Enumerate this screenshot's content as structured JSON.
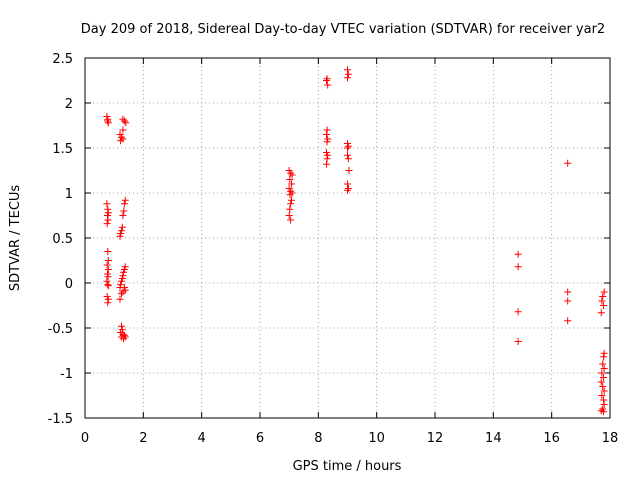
{
  "chart_data": {
    "type": "scatter",
    "title": "Day 209 of 2018, Sidereal Day-to-day VTEC variation (SDTVAR) for receiver yar2",
    "xlabel": "GPS time / hours",
    "ylabel": "SDTVAR / TECUs",
    "xlim": [
      0,
      18
    ],
    "ylim": [
      -1.5,
      2.5
    ],
    "xticks": [
      0,
      2,
      4,
      6,
      8,
      10,
      12,
      14,
      16,
      18
    ],
    "yticks": [
      -1.5,
      -1,
      -0.5,
      0,
      0.5,
      1,
      1.5,
      2,
      2.5
    ],
    "grid": true,
    "marker": "+",
    "series": [
      {
        "name": "yar2",
        "color": "#ff0000",
        "points": [
          [
            0.75,
            1.85
          ],
          [
            0.78,
            1.82
          ],
          [
            0.8,
            1.78
          ],
          [
            0.77,
            1.8
          ],
          [
            0.75,
            0.88
          ],
          [
            0.78,
            0.82
          ],
          [
            0.8,
            0.78
          ],
          [
            0.77,
            0.75
          ],
          [
            0.79,
            0.7
          ],
          [
            0.76,
            0.66
          ],
          [
            0.78,
            0.35
          ],
          [
            0.8,
            0.25
          ],
          [
            0.76,
            0.2
          ],
          [
            0.8,
            0.15
          ],
          [
            0.77,
            0.1
          ],
          [
            0.79,
            0.07
          ],
          [
            0.75,
            0.02
          ],
          [
            0.78,
            -0.02
          ],
          [
            0.8,
            -0.03
          ],
          [
            0.76,
            -0.15
          ],
          [
            0.8,
            -0.18
          ],
          [
            0.78,
            -0.22
          ],
          [
            1.2,
            1.65
          ],
          [
            1.25,
            1.62
          ],
          [
            1.3,
            1.6
          ],
          [
            1.22,
            1.58
          ],
          [
            1.3,
            1.7
          ],
          [
            1.3,
            1.82
          ],
          [
            1.35,
            1.8
          ],
          [
            1.4,
            1.78
          ],
          [
            1.38,
            0.92
          ],
          [
            1.35,
            0.88
          ],
          [
            1.33,
            0.8
          ],
          [
            1.3,
            0.75
          ],
          [
            1.28,
            0.62
          ],
          [
            1.25,
            0.58
          ],
          [
            1.22,
            0.55
          ],
          [
            1.2,
            0.52
          ],
          [
            1.38,
            0.18
          ],
          [
            1.35,
            0.15
          ],
          [
            1.32,
            0.12
          ],
          [
            1.3,
            0.08
          ],
          [
            1.28,
            0.05
          ],
          [
            1.25,
            0.02
          ],
          [
            1.22,
            -0.02
          ],
          [
            1.2,
            -0.05
          ],
          [
            1.35,
            -0.05
          ],
          [
            1.38,
            -0.08
          ],
          [
            1.3,
            -0.1
          ],
          [
            1.25,
            -0.12
          ],
          [
            1.2,
            -0.18
          ],
          [
            1.25,
            -0.48
          ],
          [
            1.28,
            -0.52
          ],
          [
            1.22,
            -0.55
          ],
          [
            1.3,
            -0.57
          ],
          [
            1.35,
            -0.58
          ],
          [
            1.25,
            -0.6
          ],
          [
            1.32,
            -0.62
          ],
          [
            1.38,
            -0.6
          ],
          [
            7.0,
            1.25
          ],
          [
            7.05,
            1.22
          ],
          [
            7.1,
            1.2
          ],
          [
            7.02,
            1.15
          ],
          [
            7.08,
            1.1
          ],
          [
            7.0,
            1.05
          ],
          [
            7.05,
            1.02
          ],
          [
            7.1,
            1.0
          ],
          [
            7.03,
            0.98
          ],
          [
            7.08,
            0.92
          ],
          [
            7.05,
            0.88
          ],
          [
            7.02,
            0.82
          ],
          [
            7.0,
            0.75
          ],
          [
            7.05,
            0.7
          ],
          [
            8.3,
            2.27
          ],
          [
            8.28,
            2.25
          ],
          [
            8.32,
            2.2
          ],
          [
            8.3,
            1.7
          ],
          [
            8.28,
            1.65
          ],
          [
            8.32,
            1.6
          ],
          [
            8.3,
            1.57
          ],
          [
            8.28,
            1.45
          ],
          [
            8.32,
            1.42
          ],
          [
            8.3,
            1.38
          ],
          [
            8.28,
            1.32
          ],
          [
            9.0,
            2.37
          ],
          [
            9.03,
            2.32
          ],
          [
            9.0,
            2.28
          ],
          [
            9.0,
            1.55
          ],
          [
            9.03,
            1.52
          ],
          [
            9.0,
            1.5
          ],
          [
            9.0,
            1.42
          ],
          [
            9.03,
            1.38
          ],
          [
            9.05,
            1.25
          ],
          [
            9.0,
            1.1
          ],
          [
            9.03,
            1.05
          ],
          [
            9.0,
            1.03
          ],
          [
            14.85,
            0.32
          ],
          [
            14.85,
            0.18
          ],
          [
            14.85,
            -0.32
          ],
          [
            14.85,
            -0.65
          ],
          [
            16.55,
            1.33
          ],
          [
            16.55,
            -0.1
          ],
          [
            16.55,
            -0.2
          ],
          [
            16.55,
            -0.42
          ],
          [
            17.8,
            -0.1
          ],
          [
            17.75,
            -0.15
          ],
          [
            17.72,
            -0.2
          ],
          [
            17.78,
            -0.25
          ],
          [
            17.7,
            -0.33
          ],
          [
            17.8,
            -0.78
          ],
          [
            17.78,
            -0.82
          ],
          [
            17.75,
            -0.9
          ],
          [
            17.8,
            -0.95
          ],
          [
            17.72,
            -1.0
          ],
          [
            17.78,
            -1.05
          ],
          [
            17.7,
            -1.1
          ],
          [
            17.75,
            -1.15
          ],
          [
            17.8,
            -1.2
          ],
          [
            17.72,
            -1.25
          ],
          [
            17.78,
            -1.3
          ],
          [
            17.8,
            -1.35
          ],
          [
            17.75,
            -1.4
          ],
          [
            17.7,
            -1.42
          ],
          [
            17.78,
            -1.43
          ]
        ]
      }
    ]
  }
}
